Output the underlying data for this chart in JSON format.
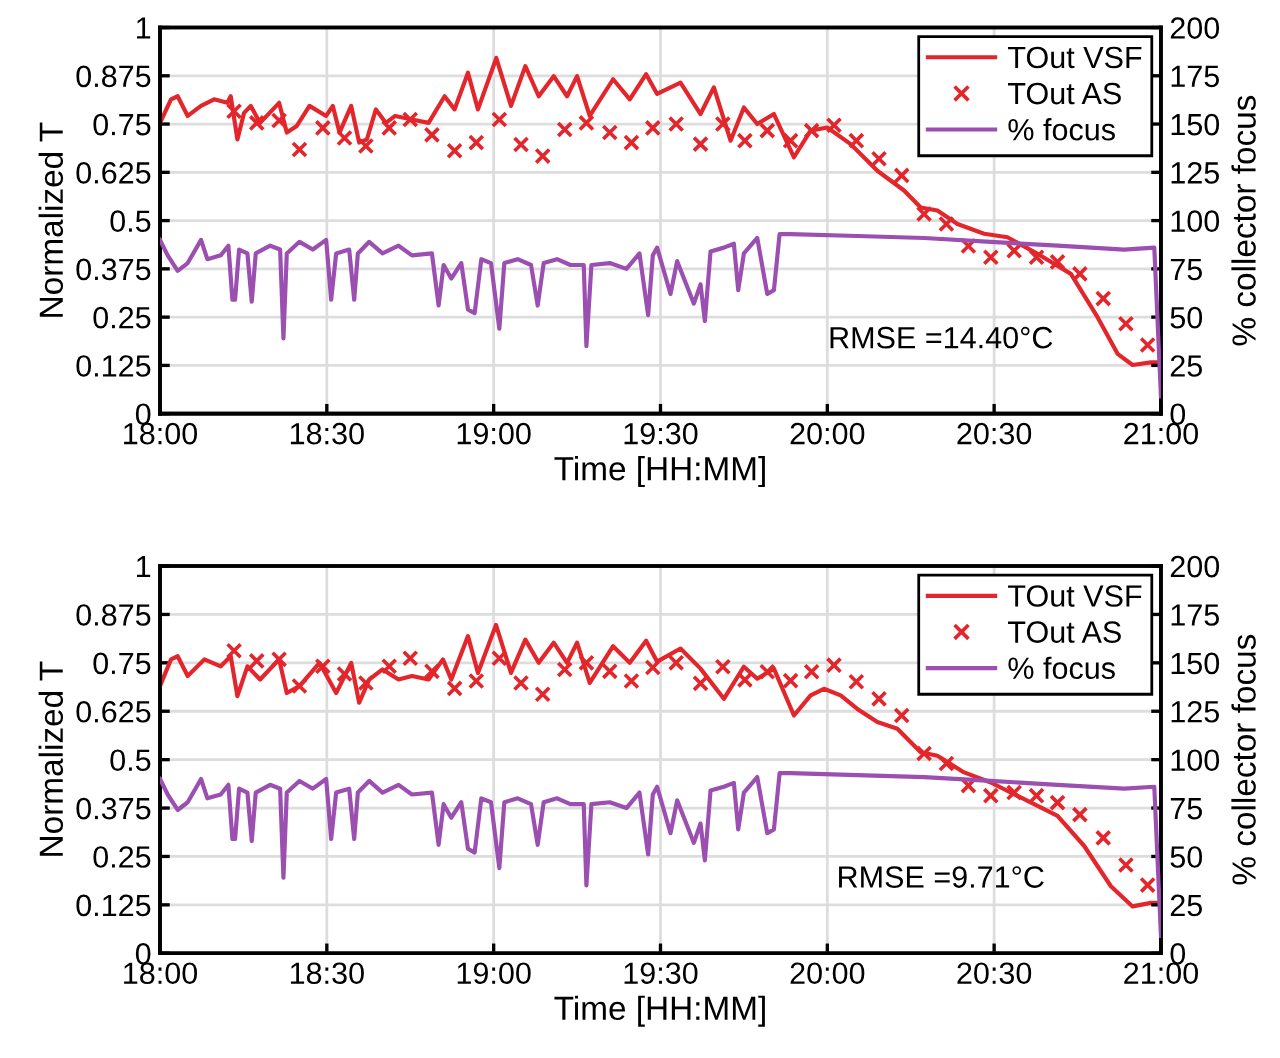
{
  "chart_data": [
    {
      "type": "line",
      "xlabel": "Time [HH:MM]",
      "ylabel": "Normalized T",
      "y2label": "% collector focus",
      "xlim": [
        18,
        21
      ],
      "ylim": [
        0,
        1
      ],
      "y2lim": [
        0,
        200
      ],
      "xticks": [
        {
          "value": 18,
          "label": "18:00"
        },
        {
          "value": 18.5,
          "label": "18:30"
        },
        {
          "value": 19,
          "label": "19:00"
        },
        {
          "value": 19.5,
          "label": "19:30"
        },
        {
          "value": 20,
          "label": "20:00"
        },
        {
          "value": 20.5,
          "label": "20:30"
        },
        {
          "value": 21,
          "label": "21:00"
        }
      ],
      "yticks": [
        0,
        0.125,
        0.25,
        0.375,
        0.5,
        0.625,
        0.75,
        0.875,
        1
      ],
      "y2ticks": [
        0,
        25,
        50,
        75,
        100,
        125,
        150,
        175,
        200
      ],
      "grid": true,
      "legend": "top right",
      "annotations": [
        "RMSE =14.40°C"
      ],
      "series": [
        {
          "name": "TOut VSF",
          "color": "#e3262b",
          "line_style": "solid",
          "x": [
            18.0,
            18.033,
            18.053,
            18.083,
            18.123,
            18.162,
            18.202,
            18.212,
            18.232,
            18.252,
            18.272,
            18.3,
            18.357,
            18.38,
            18.41,
            18.448,
            18.498,
            18.518,
            18.538,
            18.573,
            18.597,
            18.62,
            18.647,
            18.677,
            18.705,
            18.755,
            18.805,
            18.853,
            18.883,
            18.923,
            18.953,
            19.008,
            19.052,
            19.095,
            19.135,
            19.18,
            19.22,
            19.25,
            19.288,
            19.358,
            19.408,
            19.457,
            19.49,
            19.56,
            19.62,
            19.66,
            19.71,
            19.75,
            19.79,
            19.84,
            19.9,
            19.95,
            20.0,
            20.07,
            20.15,
            20.23,
            20.28,
            20.33,
            20.39,
            20.47,
            20.54,
            20.63,
            20.73,
            20.81,
            20.87,
            20.915,
            20.97,
            21.0
          ],
          "values": [
            0.753,
            0.814,
            0.822,
            0.771,
            0.797,
            0.814,
            0.805,
            0.822,
            0.71,
            0.779,
            0.797,
            0.753,
            0.805,
            0.728,
            0.745,
            0.797,
            0.771,
            0.797,
            0.728,
            0.797,
            0.702,
            0.71,
            0.788,
            0.753,
            0.771,
            0.762,
            0.753,
            0.822,
            0.788,
            0.883,
            0.788,
            0.921,
            0.797,
            0.9,
            0.822,
            0.874,
            0.822,
            0.874,
            0.771,
            0.866,
            0.814,
            0.879,
            0.828,
            0.857,
            0.776,
            0.845,
            0.707,
            0.793,
            0.75,
            0.776,
            0.664,
            0.733,
            0.741,
            0.698,
            0.629,
            0.578,
            0.534,
            0.526,
            0.491,
            0.466,
            0.457,
            0.414,
            0.362,
            0.25,
            0.155,
            0.126,
            0.133,
            0.133
          ]
        },
        {
          "name": "TOut AS",
          "type": "scatter",
          "color": "#e3262b",
          "marker": "cross",
          "x": [
            18.222,
            18.29,
            18.357,
            18.418,
            18.488,
            18.553,
            18.617,
            18.687,
            18.75,
            18.815,
            18.883,
            18.948,
            19.017,
            19.082,
            19.147,
            19.213,
            19.278,
            19.348,
            19.413,
            19.477,
            19.547,
            19.62,
            19.687,
            19.753,
            19.82,
            19.89,
            19.953,
            20.02,
            20.087,
            20.155,
            20.223,
            20.29,
            20.357,
            20.423,
            20.49,
            20.56,
            20.627,
            20.69,
            20.757,
            20.827,
            20.895,
            20.96
          ],
          "values": [
            0.783,
            0.753,
            0.759,
            0.684,
            0.74,
            0.714,
            0.693,
            0.74,
            0.762,
            0.722,
            0.681,
            0.702,
            0.762,
            0.697,
            0.667,
            0.736,
            0.753,
            0.728,
            0.702,
            0.74,
            0.75,
            0.698,
            0.75,
            0.707,
            0.733,
            0.707,
            0.733,
            0.747,
            0.707,
            0.66,
            0.617,
            0.517,
            0.491,
            0.434,
            0.405,
            0.422,
            0.405,
            0.393,
            0.362,
            0.298,
            0.233,
            0.178
          ]
        },
        {
          "name": "% focus",
          "type": "line",
          "axis": "y2",
          "color": "#9b4fb0",
          "line_style": "solid",
          "x": [
            18.0,
            18.023,
            18.053,
            18.083,
            18.123,
            18.142,
            18.182,
            18.205,
            18.217,
            18.225,
            18.237,
            18.262,
            18.275,
            18.287,
            18.33,
            18.36,
            18.37,
            18.38,
            18.418,
            18.458,
            18.498,
            18.513,
            18.528,
            18.567,
            18.582,
            18.593,
            18.627,
            18.667,
            18.715,
            18.755,
            18.815,
            18.835,
            18.85,
            18.873,
            18.903,
            18.923,
            18.943,
            18.963,
            18.992,
            19.017,
            19.032,
            19.072,
            19.112,
            19.132,
            19.15,
            19.19,
            19.23,
            19.27,
            19.278,
            19.293,
            19.348,
            19.398,
            19.437,
            19.463,
            19.477,
            19.49,
            19.53,
            19.55,
            19.6,
            19.62,
            19.633,
            19.65,
            19.69,
            19.72,
            19.733,
            19.75,
            19.79,
            19.82,
            19.84,
            19.857,
            19.89,
            20.09,
            20.29,
            20.49,
            20.69,
            20.89,
            20.98,
            21.0
          ],
          "values": [
            90,
            82,
            74,
            78,
            90,
            80,
            82,
            87,
            59,
            59,
            85,
            83,
            58,
            83,
            87,
            85,
            39,
            83,
            89,
            85,
            90,
            59,
            83,
            85,
            59,
            83,
            89,
            83,
            87,
            82,
            83,
            56,
            77,
            70,
            78,
            54,
            52,
            80,
            78,
            44,
            78,
            80,
            77,
            56,
            78,
            80,
            77,
            77,
            35,
            77,
            78,
            75,
            83,
            51,
            82,
            86,
            62,
            79,
            57,
            67,
            48,
            84,
            86,
            88,
            64,
            83,
            91,
            62,
            64,
            93,
            93,
            92,
            91,
            89,
            87,
            85,
            86,
            9
          ]
        }
      ]
    },
    {
      "type": "line",
      "xlabel": "Time [HH:MM]",
      "ylabel": "Normalized T",
      "y2label": "% collector focus",
      "xlim": [
        18,
        21
      ],
      "ylim": [
        0,
        1
      ],
      "y2lim": [
        0,
        200
      ],
      "xticks": [
        {
          "value": 18,
          "label": "18:00"
        },
        {
          "value": 18.5,
          "label": "18:30"
        },
        {
          "value": 19,
          "label": "19:00"
        },
        {
          "value": 19.5,
          "label": "19:30"
        },
        {
          "value": 20,
          "label": "20:00"
        },
        {
          "value": 20.5,
          "label": "20:30"
        },
        {
          "value": 21,
          "label": "21:00"
        }
      ],
      "yticks": [
        0,
        0.125,
        0.25,
        0.375,
        0.5,
        0.625,
        0.75,
        0.875,
        1
      ],
      "y2ticks": [
        0,
        25,
        50,
        75,
        100,
        125,
        150,
        175,
        200
      ],
      "grid": true,
      "legend": "top right",
      "annotations": [
        "RMSE =9.71°C"
      ],
      "series": [
        {
          "name": "TOut VSF",
          "color": "#e3262b",
          "line_style": "solid",
          "x": [
            18.0,
            18.033,
            18.053,
            18.083,
            18.133,
            18.182,
            18.212,
            18.232,
            18.262,
            18.3,
            18.357,
            18.38,
            18.418,
            18.478,
            18.528,
            18.573,
            18.597,
            18.627,
            18.667,
            18.715,
            18.755,
            18.805,
            18.848,
            18.873,
            18.923,
            18.953,
            19.007,
            19.052,
            19.095,
            19.135,
            19.18,
            19.22,
            19.25,
            19.288,
            19.358,
            19.408,
            19.457,
            19.49,
            19.56,
            19.62,
            19.69,
            19.75,
            19.79,
            19.84,
            19.9,
            19.95,
            19.99,
            20.04,
            20.09,
            20.15,
            20.21,
            20.28,
            20.33,
            20.41,
            20.49,
            20.59,
            20.69,
            20.77,
            20.85,
            20.915,
            20.97,
            21.0
          ],
          "values": [
            0.69,
            0.759,
            0.767,
            0.716,
            0.759,
            0.741,
            0.767,
            0.664,
            0.741,
            0.707,
            0.759,
            0.672,
            0.69,
            0.75,
            0.672,
            0.75,
            0.647,
            0.707,
            0.733,
            0.707,
            0.716,
            0.707,
            0.759,
            0.707,
            0.819,
            0.724,
            0.848,
            0.724,
            0.81,
            0.75,
            0.802,
            0.75,
            0.802,
            0.698,
            0.793,
            0.75,
            0.807,
            0.753,
            0.787,
            0.735,
            0.657,
            0.74,
            0.709,
            0.735,
            0.614,
            0.666,
            0.683,
            0.666,
            0.631,
            0.597,
            0.58,
            0.519,
            0.51,
            0.467,
            0.441,
            0.398,
            0.355,
            0.277,
            0.173,
            0.121,
            0.13,
            0.13
          ]
        },
        {
          "name": "TOut AS",
          "type": "scatter",
          "color": "#e3262b",
          "marker": "cross",
          "x": [
            18.222,
            18.29,
            18.357,
            18.418,
            18.488,
            18.553,
            18.617,
            18.687,
            18.75,
            18.815,
            18.883,
            18.948,
            19.017,
            19.082,
            19.147,
            19.213,
            19.278,
            19.348,
            19.413,
            19.477,
            19.547,
            19.62,
            19.687,
            19.753,
            19.82,
            19.89,
            19.953,
            20.02,
            20.087,
            20.155,
            20.223,
            20.29,
            20.357,
            20.423,
            20.49,
            20.56,
            20.627,
            20.69,
            20.757,
            20.827,
            20.895,
            20.96
          ],
          "values": [
            0.781,
            0.755,
            0.759,
            0.69,
            0.741,
            0.721,
            0.698,
            0.741,
            0.762,
            0.728,
            0.684,
            0.703,
            0.762,
            0.698,
            0.669,
            0.733,
            0.75,
            0.728,
            0.703,
            0.738,
            0.75,
            0.697,
            0.74,
            0.706,
            0.727,
            0.704,
            0.727,
            0.744,
            0.701,
            0.657,
            0.614,
            0.516,
            0.49,
            0.433,
            0.407,
            0.415,
            0.407,
            0.389,
            0.358,
            0.298,
            0.228,
            0.176
          ]
        },
        {
          "name": "% focus",
          "type": "line",
          "axis": "y2",
          "color": "#9b4fb0",
          "line_style": "solid",
          "x": [
            18.0,
            18.023,
            18.053,
            18.083,
            18.123,
            18.142,
            18.182,
            18.205,
            18.217,
            18.225,
            18.237,
            18.262,
            18.275,
            18.287,
            18.33,
            18.36,
            18.37,
            18.38,
            18.418,
            18.458,
            18.498,
            18.513,
            18.528,
            18.567,
            18.582,
            18.593,
            18.627,
            18.667,
            18.715,
            18.755,
            18.815,
            18.835,
            18.85,
            18.873,
            18.903,
            18.923,
            18.943,
            18.963,
            18.992,
            19.017,
            19.032,
            19.072,
            19.112,
            19.132,
            19.15,
            19.19,
            19.23,
            19.27,
            19.278,
            19.293,
            19.348,
            19.398,
            19.437,
            19.463,
            19.477,
            19.49,
            19.53,
            19.55,
            19.6,
            19.62,
            19.633,
            19.65,
            19.69,
            19.72,
            19.733,
            19.75,
            19.79,
            19.82,
            19.84,
            19.857,
            19.89,
            20.09,
            20.29,
            20.49,
            20.69,
            20.89,
            20.98,
            21.0
          ],
          "values": [
            90,
            82,
            74,
            78,
            90,
            80,
            82,
            87,
            59,
            59,
            85,
            83,
            58,
            83,
            87,
            85,
            39,
            83,
            89,
            85,
            90,
            59,
            83,
            85,
            59,
            83,
            89,
            83,
            87,
            82,
            83,
            56,
            77,
            70,
            78,
            54,
            52,
            80,
            78,
            44,
            78,
            80,
            77,
            56,
            78,
            80,
            77,
            77,
            35,
            77,
            78,
            75,
            83,
            51,
            82,
            86,
            62,
            79,
            57,
            67,
            48,
            84,
            86,
            88,
            64,
            83,
            91,
            62,
            64,
            93,
            93,
            92,
            91,
            89,
            87,
            85,
            86,
            9
          ]
        }
      ]
    }
  ]
}
